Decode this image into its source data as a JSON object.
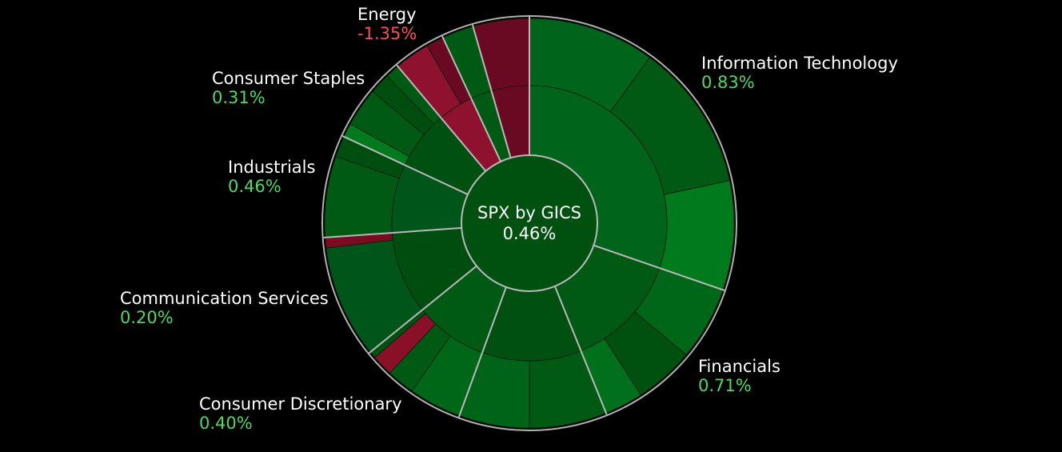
{
  "chart_data": {
    "type": "sunburst",
    "center": {
      "title": "SPX by GICS",
      "value": "0.46%"
    },
    "colors": {
      "positive_text": "#4cd964",
      "negative_text": "#ff4c5c",
      "ring_outline": "#b0b0b0",
      "separator": "#b9b9b9"
    },
    "sectors": [
      {
        "name": "Information Technology",
        "change": "0.83%",
        "positive": true,
        "start": 0,
        "end": 109,
        "inner_color": "#00641a",
        "children": [
          {
            "start": 0,
            "end": 36,
            "color": "#00641a"
          },
          {
            "start": 36,
            "end": 78,
            "color": "#005a14"
          },
          {
            "start": 78,
            "end": 109,
            "color": "#007a1c"
          }
        ]
      },
      {
        "name": "Financials",
        "change": "0.71%",
        "positive": true,
        "start": 109,
        "end": 158,
        "inner_color": "#005a14",
        "children": [
          {
            "start": 109,
            "end": 130,
            "color": "#006618"
          },
          {
            "start": 130,
            "end": 147,
            "color": "#00500f"
          },
          {
            "start": 147,
            "end": 158,
            "color": "#00701c"
          }
        ]
      },
      {
        "name": "",
        "change": "",
        "positive": true,
        "start": 158,
        "end": 200,
        "inner_color": "#005012",
        "children": [
          {
            "start": 158,
            "end": 180,
            "color": "#005a14"
          },
          {
            "start": 180,
            "end": 200,
            "color": "#006418"
          }
        ]
      },
      {
        "name": "Consumer Discretionary",
        "change": "0.40%",
        "positive": true,
        "start": 200,
        "end": 231,
        "inner_color": "#005a14",
        "children": [
          {
            "start": 200,
            "end": 215,
            "color": "#006618"
          },
          {
            "start": 215,
            "end": 223,
            "color": "#005a14"
          },
          {
            "start": 223,
            "end": 229,
            "color": "#8a1028"
          },
          {
            "start": 229,
            "end": 231,
            "color": "#005012"
          }
        ]
      },
      {
        "name": "Communication Services",
        "change": "0.20%",
        "positive": true,
        "start": 231,
        "end": 266,
        "inner_color": "#004d10",
        "children": [
          {
            "start": 231,
            "end": 263,
            "color": "#00561a"
          },
          {
            "start": 263,
            "end": 266,
            "color": "#7a0c22"
          }
        ]
      },
      {
        "name": "Industrials",
        "change": "0.46%",
        "positive": true,
        "start": 266,
        "end": 295,
        "inner_color": "#00561a",
        "children": [
          {
            "start": 266,
            "end": 289,
            "color": "#005a14"
          },
          {
            "start": 289,
            "end": 295,
            "color": "#004d10"
          }
        ]
      },
      {
        "name": "Consumer Staples",
        "change": "0.31%",
        "positive": true,
        "start": 295,
        "end": 320,
        "inner_color": "#005012",
        "children": [
          {
            "start": 295,
            "end": 299,
            "color": "#007a1c"
          },
          {
            "start": 299,
            "end": 310,
            "color": "#005a14"
          },
          {
            "start": 310,
            "end": 316,
            "color": "#004d10"
          },
          {
            "start": 316,
            "end": 320,
            "color": "#005a14"
          }
        ]
      },
      {
        "name": "Energy",
        "change": "-1.35%",
        "positive": false,
        "start": 320,
        "end": 335,
        "inner_color": "#8e1230",
        "children": [
          {
            "start": 320,
            "end": 330,
            "color": "#8e1230"
          },
          {
            "start": 330,
            "end": 335,
            "color": "#6a0a22"
          }
        ]
      },
      {
        "name": "",
        "change": "",
        "positive": true,
        "start": 335,
        "end": 344,
        "inner_color": "#005a14",
        "children": [
          {
            "start": 335,
            "end": 344,
            "color": "#005a14"
          }
        ]
      },
      {
        "name": "",
        "change": "",
        "positive": false,
        "start": 344,
        "end": 360,
        "inner_color": "#6a0a22",
        "children": [
          {
            "start": 344,
            "end": 360,
            "color": "#6a0a22"
          }
        ]
      }
    ]
  }
}
